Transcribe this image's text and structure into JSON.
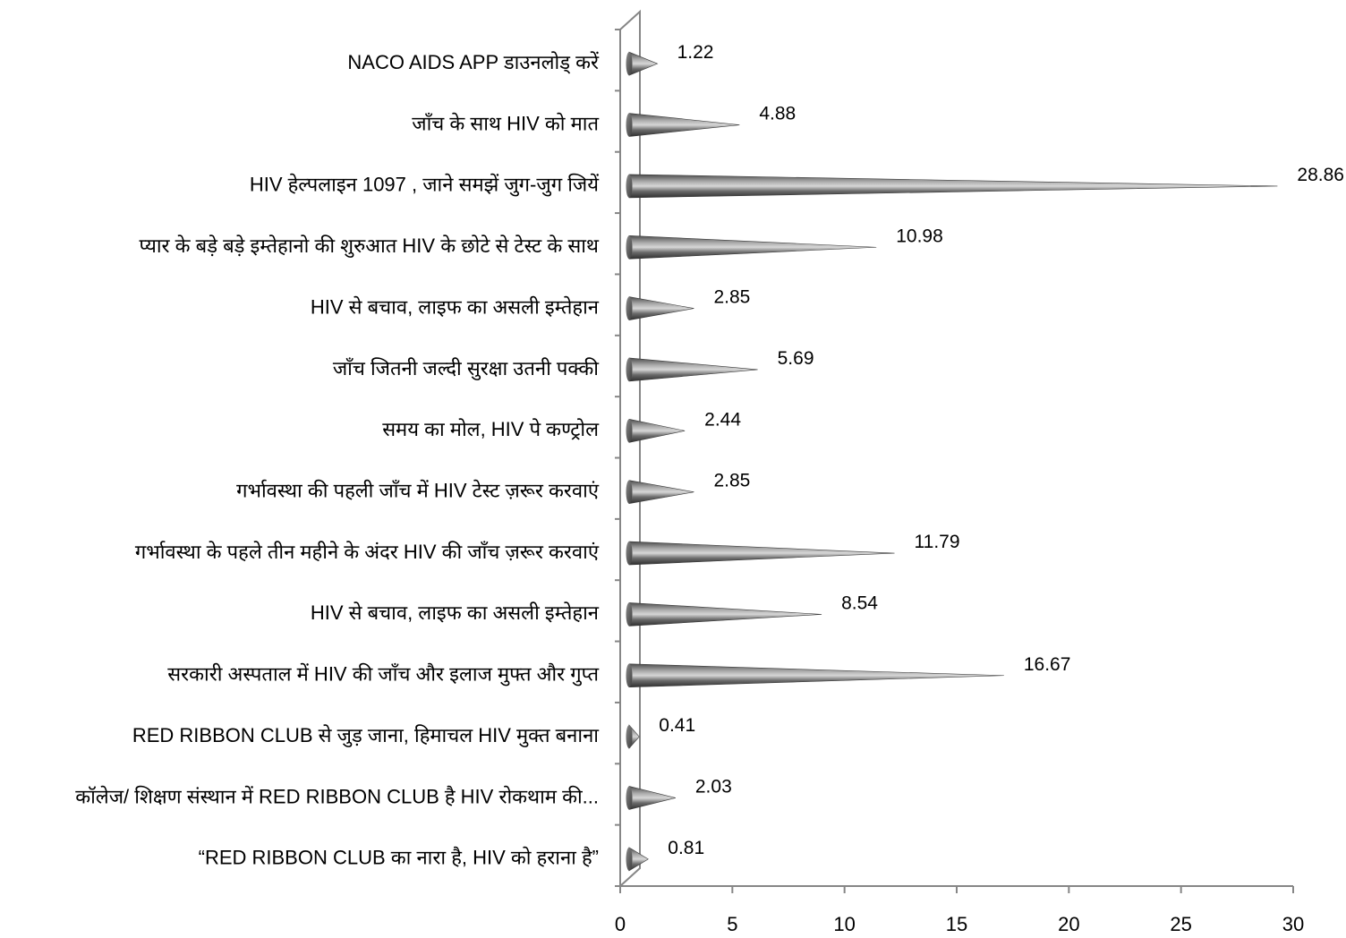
{
  "chart_data": {
    "type": "bar",
    "orientation": "horizontal",
    "bar_shape": "cone",
    "categories": [
      "NACO AIDS APP डाउनलोड् करें",
      "जाँच के साथ HIV को मात",
      "HIV हेल्पलाइन 1097 , जाने समझें जुग-जुग जियें",
      "प्यार के बड़े बड़े इम्तेहानो की शुरुआत HIV के छोटे से टेस्ट के साथ",
      "HIV  से बचाव, लाइफ का असली इम्तेहान",
      "जाँच जितनी जल्दी सुरक्षा उतनी पक्की",
      "समय का मोल, HIV पे कण्ट्रोल",
      "गर्भावस्था की पहली जाँच में HIV टेस्ट ज़रूर करवाएं",
      "गर्भावस्था के पहले तीन महीने के अंदर HIV की जाँच ज़रूर करवाएं",
      "HIV से बचाव, लाइफ का असली इम्तेहान",
      "सरकारी अस्पताल में HIV की जाँच और इलाज मुफ्त और गुप्त",
      "RED  RIBBON  CLUB  से जुड़ जाना, हिमाचल HIV मुक्त बनाना",
      "कॉलेज/ शिक्षण संस्थान में RED RIBBON CLUB है HIV रोकथाम की...",
      "“RED  RIBBON  CLUB  का नारा है, HIV को हराना है”"
    ],
    "values": [
      1.22,
      4.88,
      28.86,
      10.98,
      2.85,
      5.69,
      2.44,
      2.85,
      11.79,
      8.54,
      16.67,
      0.41,
      2.03,
      0.81
    ],
    "value_labels": [
      "1.22",
      "4.88",
      "28.86",
      "10.98",
      "2.85",
      "5.69",
      "2.44",
      "2.85",
      "11.79",
      "8.54",
      "16.67",
      "0.41",
      "2.03",
      "0.81"
    ],
    "xlim": [
      0,
      30
    ],
    "xticks": [
      "0",
      "5",
      "10",
      "15",
      "20",
      "25",
      "30"
    ],
    "xtick_values": [
      0,
      5,
      10,
      15,
      20,
      25,
      30
    ],
    "grid": false,
    "legend": "none",
    "colors": {
      "bar_dark": "#3a3a3a",
      "bar_mid": "#6e6e6e",
      "bar_light": "#c8c8c8",
      "axis": "#868686"
    }
  }
}
